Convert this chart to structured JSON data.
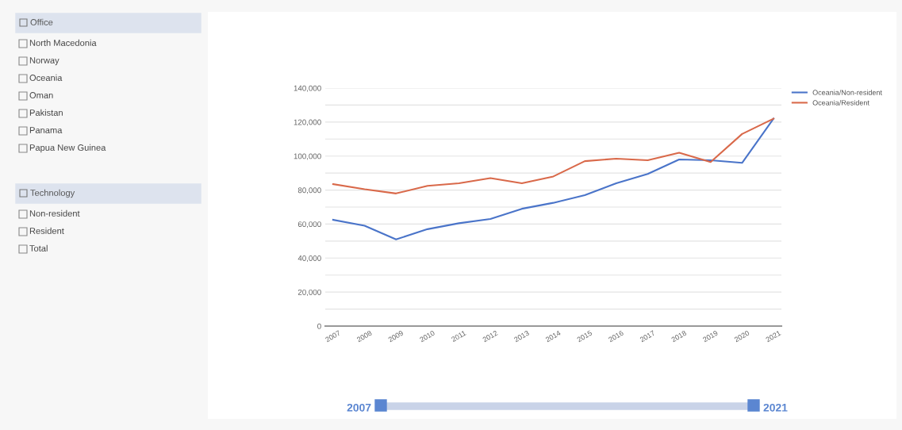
{
  "chart_data": [
    {
      "type": "other",
      "title": "Office",
      "annotations": [
        "North Macedonia",
        "Norway",
        "Oceania",
        "Oman",
        "Pakistan",
        "Panama",
        "Papua New Guinea"
      ]
    },
    {
      "type": "other",
      "title": "Technology",
      "annotations": [
        "Non-resident",
        "Resident",
        "Total"
      ]
    },
    {
      "type": "line",
      "categories": [
        "2007",
        "2008",
        "2009",
        "2010",
        "2011",
        "2012",
        "2013",
        "2014",
        "2015",
        "2016",
        "2017",
        "2018",
        "2019",
        "2020",
        "2021"
      ],
      "series": [
        {
          "name": "Oceania/Non-resident",
          "color": "#4a74c9",
          "values": [
            62500,
            59000,
            51000,
            57000,
            60500,
            63000,
            69000,
            72500,
            77000,
            84000,
            89500,
            98000,
            97500,
            96000,
            122000
          ]
        },
        {
          "name": "Oceania/Resident",
          "color": "#d9694a",
          "values": [
            83500,
            80500,
            78000,
            82500,
            84000,
            87000,
            84000,
            88000,
            97000,
            98500,
            97500,
            102000,
            96500,
            113000,
            122000
          ]
        }
      ],
      "ylim": [
        0,
        140000
      ],
      "yticks": [
        {
          "value": 0,
          "label": "0"
        },
        {
          "value": 10000,
          "label": null
        },
        {
          "value": 20000,
          "label": "20,000"
        },
        {
          "value": 30000,
          "label": null
        },
        {
          "value": 40000,
          "label": "40,000"
        },
        {
          "value": 50000,
          "label": null
        },
        {
          "value": 60000,
          "label": "60,000"
        },
        {
          "value": 70000,
          "label": null
        },
        {
          "value": 80000,
          "label": "80,000"
        },
        {
          "value": 90000,
          "label": null
        },
        {
          "value": 100000,
          "label": "100,000"
        },
        {
          "value": 110000,
          "label": null
        },
        {
          "value": 120000,
          "label": "120,000"
        },
        {
          "value": 130000,
          "label": null
        },
        {
          "value": 140000,
          "label": "140,000"
        }
      ],
      "grid": "y",
      "legend": "top right",
      "marker": "none",
      "line_style": "solid",
      "annotations": [
        "2007",
        "2021"
      ]
    }
  ]
}
